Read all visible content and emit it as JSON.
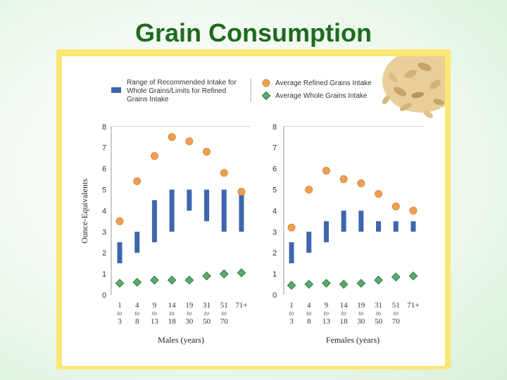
{
  "title": "Grain Consumption",
  "colors": {
    "title": "#1e6b1e",
    "bar": "#3e65ad",
    "refined_marker": "#f0a050",
    "refined_marker_stroke": "#d9883a",
    "whole_marker": "#5aaa6a",
    "whole_marker_stroke": "#2f7a40",
    "frame": "#fbe874",
    "gridline": "#cccccc"
  },
  "legend": {
    "bar_label": [
      "Range of Recommended Intake for",
      "Whole Grains/Limits for Refined",
      "Grains Intake"
    ],
    "refined_label": "Average Refined Grains Intake",
    "whole_label": "Average Whole Grains Intake"
  },
  "chart_data": [
    {
      "type": "bar",
      "panel": "males",
      "xlabel": "Males (years)",
      "ylabel": "Ounce-Equivalents",
      "ylim": [
        0,
        8
      ],
      "yticks": [
        0,
        1,
        2,
        3,
        4,
        5,
        6,
        7,
        8
      ],
      "categories": [
        {
          "from": "1",
          "to_word": "to",
          "to": "3"
        },
        {
          "from": "4",
          "to_word": "to",
          "to": "8"
        },
        {
          "from": "9",
          "to_word": "to",
          "to": "13"
        },
        {
          "from": "14",
          "to_word": "to",
          "to": "18"
        },
        {
          "from": "19",
          "to_word": "to",
          "to": "30"
        },
        {
          "from": "31",
          "to_word": "to",
          "to": "50"
        },
        {
          "from": "51",
          "to_word": "to",
          "to": "70"
        },
        {
          "from": "71+",
          "to_word": "",
          "to": ""
        }
      ],
      "recommended_range": [
        [
          1.5,
          2.5
        ],
        [
          2,
          3
        ],
        [
          2.5,
          4.5
        ],
        [
          3,
          5
        ],
        [
          4,
          5
        ],
        [
          3.5,
          5
        ],
        [
          3,
          5
        ],
        [
          3,
          5
        ]
      ],
      "avg_refined": [
        3.5,
        5.4,
        6.6,
        7.5,
        7.3,
        6.8,
        5.8,
        4.9
      ],
      "avg_whole": [
        0.55,
        0.6,
        0.7,
        0.7,
        0.7,
        0.9,
        1.0,
        1.05
      ]
    },
    {
      "type": "bar",
      "panel": "females",
      "xlabel": "Females (years)",
      "ylabel": "",
      "ylim": [
        0,
        8
      ],
      "yticks": [
        0,
        1,
        2,
        3,
        4,
        5,
        6,
        7,
        8
      ],
      "categories": [
        {
          "from": "1",
          "to_word": "to",
          "to": "3"
        },
        {
          "from": "4",
          "to_word": "to",
          "to": "8"
        },
        {
          "from": "9",
          "to_word": "to",
          "to": "13"
        },
        {
          "from": "14",
          "to_word": "to",
          "to": "18"
        },
        {
          "from": "19",
          "to_word": "to",
          "to": "30"
        },
        {
          "from": "31",
          "to_word": "to",
          "to": "50"
        },
        {
          "from": "51",
          "to_word": "to",
          "to": "70"
        },
        {
          "from": "71+",
          "to_word": "",
          "to": ""
        }
      ],
      "recommended_range": [
        [
          1.5,
          2.5
        ],
        [
          2,
          3
        ],
        [
          2.5,
          3.5
        ],
        [
          3,
          4
        ],
        [
          3,
          4
        ],
        [
          3,
          3.5
        ],
        [
          3,
          3.5
        ],
        [
          3,
          3.5
        ]
      ],
      "avg_refined": [
        3.2,
        5.0,
        5.9,
        5.5,
        5.3,
        4.8,
        4.2,
        4.0
      ],
      "avg_whole": [
        0.45,
        0.5,
        0.55,
        0.5,
        0.55,
        0.7,
        0.85,
        0.9
      ]
    }
  ]
}
